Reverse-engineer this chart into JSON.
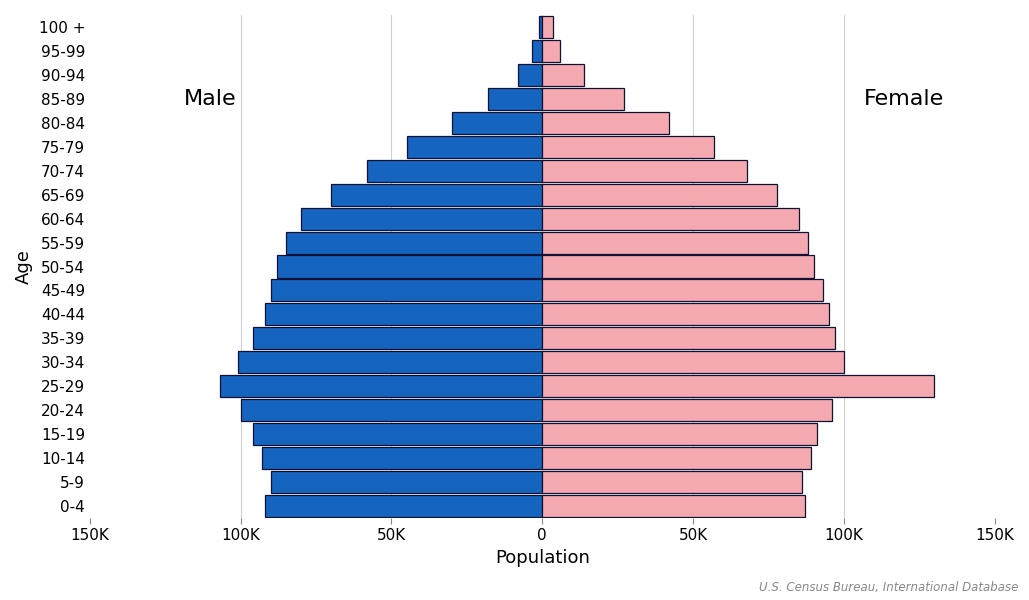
{
  "age_groups": [
    "0-4",
    "5-9",
    "10-14",
    "15-19",
    "20-24",
    "25-29",
    "30-34",
    "35-39",
    "40-44",
    "45-49",
    "50-54",
    "55-59",
    "60-64",
    "65-69",
    "70-74",
    "75-79",
    "80-84",
    "85-89",
    "90-94",
    "95-99",
    "100 +"
  ],
  "male": [
    92000,
    90000,
    93000,
    96000,
    100000,
    107000,
    101000,
    96000,
    92000,
    90000,
    88000,
    85000,
    80000,
    70000,
    58000,
    45000,
    30000,
    18000,
    8000,
    3500,
    1000
  ],
  "female": [
    87000,
    86000,
    89000,
    91000,
    96000,
    130000,
    100000,
    97000,
    95000,
    93000,
    90000,
    88000,
    85000,
    78000,
    68000,
    57000,
    42000,
    27000,
    14000,
    6000,
    3500
  ],
  "male_color": "#1565C0",
  "female_color": "#F4A9B0",
  "edge_color": "#111133",
  "background_color": "#ffffff",
  "male_label": "Male",
  "female_label": "Female",
  "xlabel": "Population",
  "ylabel": "Age",
  "xlim": 150000,
  "tick_values": [
    -150000,
    -100000,
    -50000,
    0,
    50000,
    100000,
    150000
  ],
  "tick_labels": [
    "150K",
    "100K",
    "50K",
    "0",
    "50K",
    "100K",
    "150K"
  ],
  "source_text": "U.S. Census Bureau, International Database",
  "label_fontsize": 13,
  "tick_fontsize": 11,
  "bar_edge_width": 0.9,
  "bar_height": 0.92
}
